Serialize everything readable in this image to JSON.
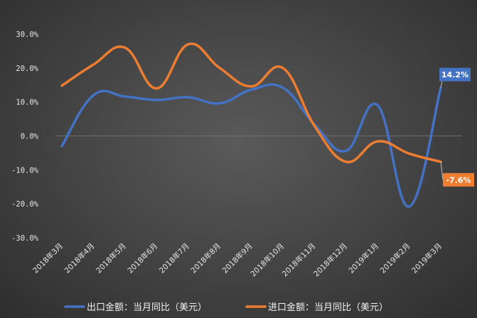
{
  "chart_data": {
    "type": "line",
    "categories": [
      "2018年3月",
      "2018年4月",
      "2018年5月",
      "2018年6月",
      "2018年7月",
      "2018年8月",
      "2018年9月",
      "2018年10月",
      "2018年11月",
      "2018年12月",
      "2019年1月",
      "2019年2月",
      "2019年3月"
    ],
    "series": [
      {
        "name": "出口金额：当月同比（美元）",
        "color": "#4472c4",
        "values": [
          -3.0,
          12.0,
          11.6,
          10.6,
          11.4,
          9.6,
          13.6,
          14.2,
          3.4,
          -4.4,
          9.0,
          -20.8,
          14.2
        ]
      },
      {
        "name": "进口金额：当月同比（美元）",
        "color": "#ed7d31",
        "values": [
          14.8,
          21.0,
          26.0,
          14.0,
          27.0,
          20.0,
          14.6,
          20.0,
          3.0,
          -7.6,
          -1.6,
          -5.2,
          -7.6
        ]
      }
    ],
    "yticks": [
      "30.0%",
      "20.0%",
      "10.0%",
      "0.0%",
      "-10.0%",
      "-20.0%",
      "-30.0%"
    ],
    "ylim": [
      -30,
      30
    ],
    "grid": "zero-line only",
    "legend": "bottom",
    "data_labels": [
      {
        "series": 0,
        "index": 12,
        "text": "14.2%"
      },
      {
        "series": 1,
        "index": 12,
        "text": "-7.6%"
      }
    ]
  }
}
